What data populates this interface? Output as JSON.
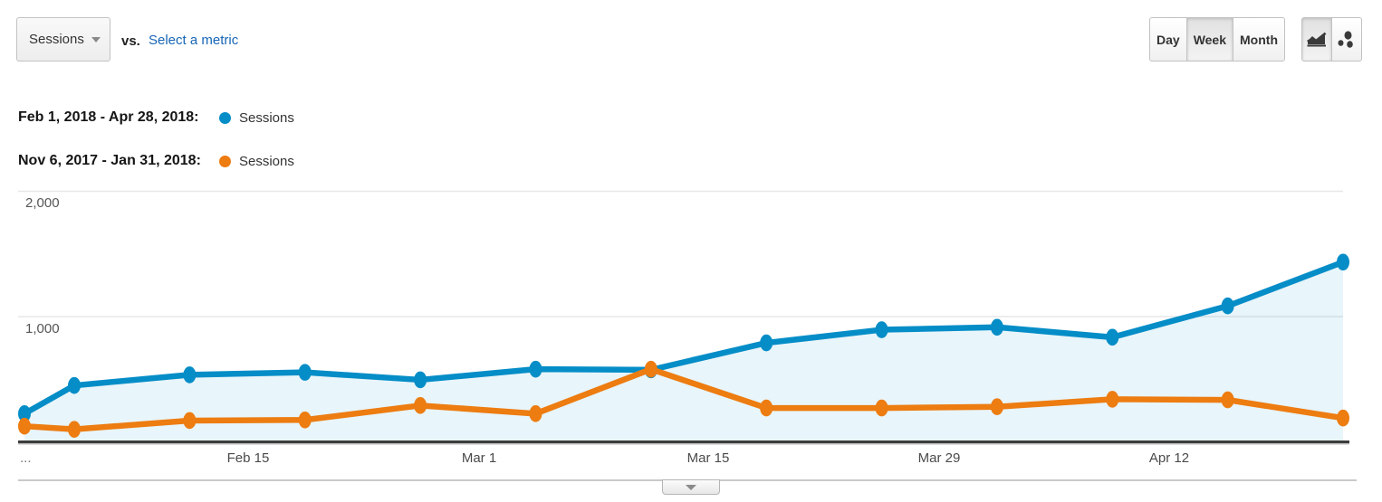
{
  "toolbar": {
    "metric_dropdown": {
      "value": "Sessions"
    },
    "vs_label": "vs.",
    "select_metric_label": "Select a metric",
    "granularity": {
      "options": [
        "Day",
        "Week",
        "Month"
      ],
      "selected": "Week"
    },
    "chart_type": {
      "selected": "line-chart",
      "options": [
        "line-chart",
        "motion-chart"
      ]
    }
  },
  "legend": {
    "rows": [
      {
        "date_range": "Feb 1, 2018 - Apr 28, 2018:",
        "series_label": "Sessions",
        "color": "#058dc7"
      },
      {
        "date_range": "Nov 6, 2017 - Jan 31, 2018:",
        "series_label": "Sessions",
        "color": "#ed7c11"
      }
    ]
  },
  "chart_data": {
    "type": "line",
    "x_ticks": [
      "...",
      "Feb 15",
      "Mar 1",
      "Mar 15",
      "Mar 29",
      "Apr 12"
    ],
    "y_ticks": [
      "2,000",
      "1,000"
    ],
    "ylim": [
      0,
      2000
    ],
    "grid": "horizontal-only",
    "legend_position": "top-left-above-chart",
    "series": [
      {
        "name": "Sessions",
        "date_range": "Feb 1, 2018 - Apr 28, 2018",
        "color": "#058dc7",
        "area_fill": "rgba(5,141,199,0.09)",
        "values": [
          225,
          450,
          535,
          555,
          495,
          580,
          575,
          790,
          895,
          915,
          835,
          1085,
          1435
        ]
      },
      {
        "name": "Sessions",
        "date_range": "Nov 6, 2017 - Jan 31, 2018",
        "color": "#ed7c11",
        "area_fill": null,
        "values": [
          125,
          100,
          170,
          175,
          290,
          225,
          580,
          270,
          270,
          280,
          340,
          335,
          190
        ]
      }
    ],
    "colors": {
      "axis_line": "#3c3c3c",
      "gridline": "#e7e7e7"
    }
  },
  "footer": {
    "collapse_handle": "toggle-lower-pane"
  }
}
